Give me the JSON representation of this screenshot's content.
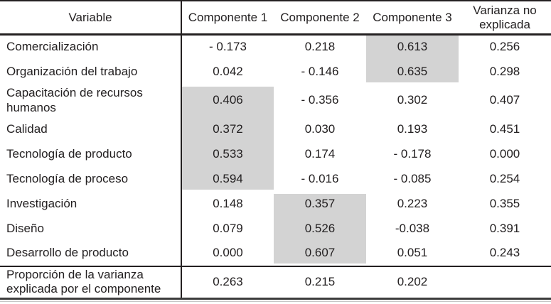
{
  "colors": {
    "highlight_fill": "#d3d3d3",
    "rule": "#242021",
    "text": "#232021",
    "background": "#ffffff"
  },
  "table": {
    "header": {
      "variable": "Variable",
      "componente_1": "Componente 1",
      "componente_2": "Componente 2",
      "componente_3": "Componente 3",
      "varianza_no_explicada": "Varianza no explicada"
    },
    "rows": [
      {
        "name": "Comercialización",
        "c1": "- 0.173",
        "c2": "0.218",
        "c3": "0.613",
        "vne": "0.256",
        "highlight": "c3"
      },
      {
        "name": "Organización del trabajo",
        "c1": "0.042",
        "c2": "- 0.146",
        "c3": "0.635",
        "vne": "0.298",
        "highlight": "c3"
      },
      {
        "name": "Capacitación de recursos humanos",
        "c1": "0.406",
        "c2": "- 0.356",
        "c3": "0.302",
        "vne": "0.407",
        "highlight": "c1"
      },
      {
        "name": "Calidad",
        "c1": "0.372",
        "c2": "0.030",
        "c3": "0.193",
        "vne": "0.451",
        "highlight": "c1"
      },
      {
        "name": "Tecnología de producto",
        "c1": "0.533",
        "c2": "0.174",
        "c3": "- 0.178",
        "vne": "0.000",
        "highlight": "c1"
      },
      {
        "name": "Tecnología de proceso",
        "c1": "0.594",
        "c2": "- 0.016",
        "c3": "- 0.085",
        "vne": "0.254",
        "highlight": "c1"
      },
      {
        "name": "Investigación",
        "c1": "0.148",
        "c2": "0.357",
        "c3": "0.223",
        "vne": "0.355",
        "highlight": "c2"
      },
      {
        "name": "Diseño",
        "c1": "0.079",
        "c2": "0.526",
        "c3": "-0.038",
        "vne": "0.391",
        "highlight": "c2"
      },
      {
        "name": "Desarrollo de producto",
        "c1": "0.000",
        "c2": "0.607",
        "c3": "0.051",
        "vne": "0.243",
        "highlight": "c2"
      }
    ],
    "footer": {
      "label": "Proporción de la varianza explicada por el componente",
      "c1": "0.263",
      "c2": "0.215",
      "c3": "0.202",
      "vne": ""
    }
  }
}
